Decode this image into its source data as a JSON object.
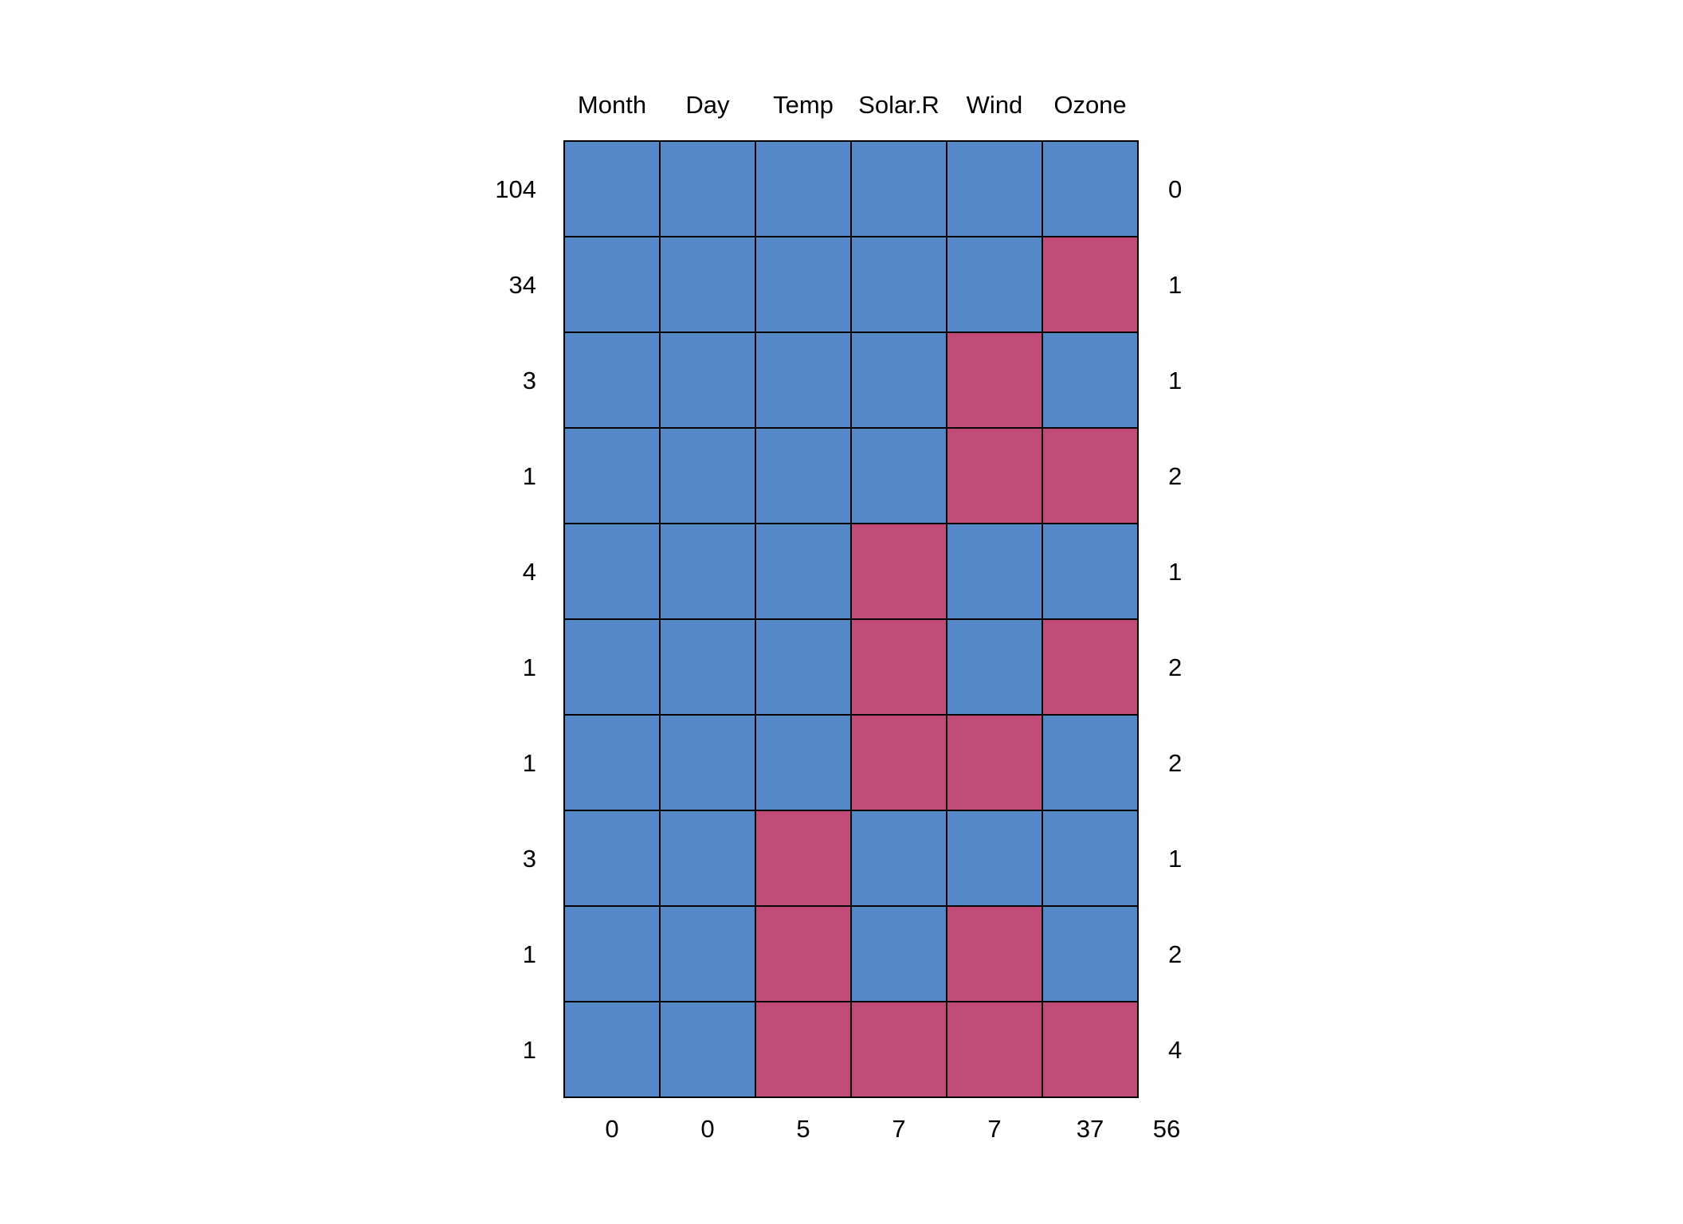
{
  "chart_data": {
    "type": "heatmap",
    "columns": [
      "Month",
      "Day",
      "Temp",
      "Solar.R",
      "Wind",
      "Ozone"
    ],
    "row_counts": [
      "104",
      "34",
      "3",
      "1",
      "4",
      "1",
      "1",
      "3",
      "1",
      "1"
    ],
    "row_missing": [
      "0",
      "1",
      "1",
      "2",
      "1",
      "2",
      "2",
      "1",
      "2",
      "4"
    ],
    "column_missing": [
      "0",
      "0",
      "5",
      "7",
      "7",
      "37"
    ],
    "total_missing": "56",
    "pattern": [
      [
        1,
        1,
        1,
        1,
        1,
        1
      ],
      [
        1,
        1,
        1,
        1,
        1,
        0
      ],
      [
        1,
        1,
        1,
        1,
        0,
        1
      ],
      [
        1,
        1,
        1,
        1,
        0,
        0
      ],
      [
        1,
        1,
        1,
        0,
        1,
        1
      ],
      [
        1,
        1,
        1,
        0,
        1,
        0
      ],
      [
        1,
        1,
        1,
        0,
        0,
        1
      ],
      [
        1,
        1,
        0,
        1,
        1,
        1
      ],
      [
        1,
        1,
        0,
        1,
        0,
        1
      ],
      [
        1,
        1,
        0,
        0,
        0,
        0
      ]
    ],
    "colors": {
      "observed": "#5488C9",
      "missing": "#C04B76",
      "border": "#000000"
    }
  }
}
